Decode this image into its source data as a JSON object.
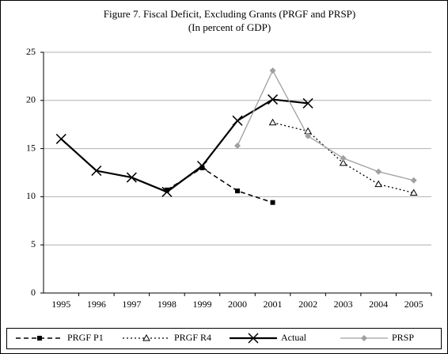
{
  "chart_data": {
    "type": "line",
    "title": "Figure 7. Fiscal Deficit, Excluding Grants (PRGF and PRSP)",
    "subtitle": "(In percent of GDP)",
    "categories": [
      "1995",
      "1996",
      "1997",
      "1998",
      "1999",
      "2000",
      "2001",
      "2002",
      "2003",
      "2004",
      "2005"
    ],
    "series": [
      {
        "name": "PRGF P1",
        "color": "#000000",
        "marker": "square",
        "dash": "6,4",
        "width": 1.5,
        "values": [
          null,
          null,
          null,
          10.7,
          13.0,
          10.6,
          9.4,
          null,
          null,
          null,
          null
        ]
      },
      {
        "name": "PRGF R4",
        "color": "#000000",
        "marker": "triangle",
        "dash": "2,3",
        "width": 1.3,
        "values": [
          null,
          null,
          null,
          null,
          null,
          null,
          17.7,
          16.8,
          13.5,
          11.3,
          10.4
        ]
      },
      {
        "name": "Actual",
        "color": "#000000",
        "marker": "x",
        "dash": "none",
        "width": 2.2,
        "values": [
          16.0,
          12.7,
          12.0,
          10.5,
          13.2,
          17.9,
          20.1,
          19.7,
          null,
          null,
          null
        ]
      },
      {
        "name": "PRSP",
        "color": "#a0a0a0",
        "marker": "diamond",
        "dash": "none",
        "width": 1.3,
        "values": [
          null,
          null,
          null,
          null,
          null,
          15.3,
          23.1,
          16.3,
          14.0,
          12.6,
          11.7
        ]
      }
    ],
    "ylim": [
      0,
      25
    ],
    "yticks": [
      0,
      5,
      10,
      15,
      20,
      25
    ],
    "grid": true
  }
}
